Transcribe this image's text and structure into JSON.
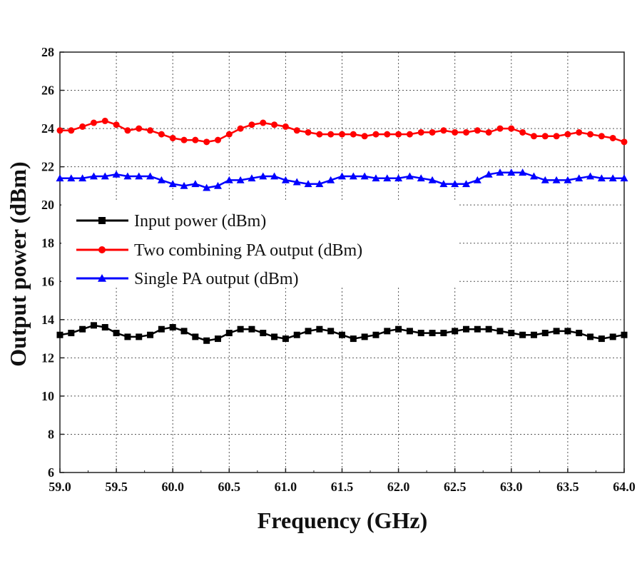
{
  "chart_data": {
    "type": "line",
    "title": "",
    "xlabel": "Frequency (GHz)",
    "ylabel": "Output  power (dBm)",
    "xlim": [
      59.0,
      64.0
    ],
    "ylim": [
      6,
      28
    ],
    "x_ticks": [
      "59.0",
      "59.5",
      "60.0",
      "60.5",
      "61.0",
      "61.5",
      "62.0",
      "62.5",
      "63.0",
      "63.5",
      "64.0"
    ],
    "y_ticks": [
      "6",
      "8",
      "10",
      "12",
      "14",
      "16",
      "18",
      "20",
      "22",
      "24",
      "26",
      "28"
    ],
    "grid": true,
    "legend_position": "center-left",
    "x": [
      59.0,
      59.1,
      59.2,
      59.3,
      59.4,
      59.5,
      59.6,
      59.7,
      59.8,
      59.9,
      60.0,
      60.1,
      60.2,
      60.3,
      60.4,
      60.5,
      60.6,
      60.7,
      60.8,
      60.9,
      61.0,
      61.1,
      61.2,
      61.3,
      61.4,
      61.5,
      61.6,
      61.7,
      61.8,
      61.9,
      62.0,
      62.1,
      62.2,
      62.3,
      62.4,
      62.5,
      62.6,
      62.7,
      62.8,
      62.9,
      63.0,
      63.1,
      63.2,
      63.3,
      63.4,
      63.5,
      63.6,
      63.7,
      63.8,
      63.9,
      64.0
    ],
    "series": [
      {
        "name": "Input power (dBm)",
        "color": "#000000",
        "marker": "square",
        "values": [
          13.2,
          13.3,
          13.5,
          13.7,
          13.6,
          13.3,
          13.1,
          13.1,
          13.2,
          13.5,
          13.6,
          13.4,
          13.1,
          12.9,
          13.0,
          13.3,
          13.5,
          13.5,
          13.3,
          13.1,
          13.0,
          13.2,
          13.4,
          13.5,
          13.4,
          13.2,
          13.0,
          13.1,
          13.2,
          13.4,
          13.5,
          13.4,
          13.3,
          13.3,
          13.3,
          13.4,
          13.5,
          13.5,
          13.5,
          13.4,
          13.3,
          13.2,
          13.2,
          13.3,
          13.4,
          13.4,
          13.3,
          13.1,
          13.0,
          13.1,
          13.2
        ]
      },
      {
        "name": "Two combining PA output (dBm)",
        "color": "#ff0000",
        "marker": "circle",
        "values": [
          23.9,
          23.9,
          24.1,
          24.3,
          24.4,
          24.2,
          23.9,
          24.0,
          23.9,
          23.7,
          23.5,
          23.4,
          23.4,
          23.3,
          23.4,
          23.7,
          24.0,
          24.2,
          24.3,
          24.2,
          24.1,
          23.9,
          23.8,
          23.7,
          23.7,
          23.7,
          23.7,
          23.6,
          23.7,
          23.7,
          23.7,
          23.7,
          23.8,
          23.8,
          23.9,
          23.8,
          23.8,
          23.9,
          23.8,
          24.0,
          24.0,
          23.8,
          23.6,
          23.6,
          23.6,
          23.7,
          23.8,
          23.7,
          23.6,
          23.5,
          23.3
        ]
      },
      {
        "name": "Single PA output (dBm)",
        "color": "#0000ff",
        "marker": "triangle",
        "values": [
          21.4,
          21.4,
          21.4,
          21.5,
          21.5,
          21.6,
          21.5,
          21.5,
          21.5,
          21.3,
          21.1,
          21.0,
          21.1,
          20.9,
          21.0,
          21.3,
          21.3,
          21.4,
          21.5,
          21.5,
          21.3,
          21.2,
          21.1,
          21.1,
          21.3,
          21.5,
          21.5,
          21.5,
          21.4,
          21.4,
          21.4,
          21.5,
          21.4,
          21.3,
          21.1,
          21.1,
          21.1,
          21.3,
          21.6,
          21.7,
          21.7,
          21.7,
          21.5,
          21.3,
          21.3,
          21.3,
          21.4,
          21.5,
          21.4,
          21.4,
          21.4
        ]
      }
    ]
  }
}
